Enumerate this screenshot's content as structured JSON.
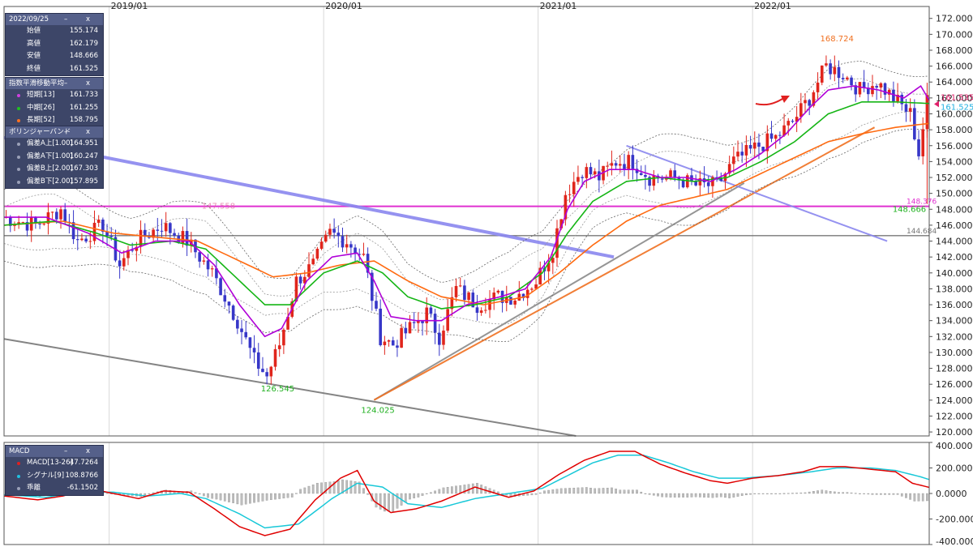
{
  "colors": {
    "up": "#e0251c",
    "down": "#3737c8",
    "short_ema": "#b000d8",
    "mid_ema": "#15b515",
    "long_ema": "#ff6a10",
    "macd": "#e00000",
    "signal": "#18c8d8",
    "magenta_line": "#e030d0",
    "trend_blue": "#8a86ee",
    "gray_line": "#808080"
  },
  "x_axis_labels": [
    "2019/01",
    "2020/01",
    "2021/01",
    "2022/01"
  ],
  "price_panel": {
    "header": "2022/09/25",
    "rows": [
      {
        "label": "始値",
        "value": "155.174"
      },
      {
        "label": "高値",
        "value": "162.179"
      },
      {
        "label": "安値",
        "value": "148.666"
      },
      {
        "label": "終値",
        "value": "161.525"
      }
    ]
  },
  "ema_panel": {
    "header": "指数平滑移動平均",
    "rows": [
      {
        "label": "短期[13]",
        "value": "161.733",
        "color": "#d040e0"
      },
      {
        "label": "中期[26]",
        "value": "161.255",
        "color": "#20c020"
      },
      {
        "label": "長期[52]",
        "value": "158.795",
        "color": "#ff7020"
      }
    ]
  },
  "bb_panel": {
    "header": "ボリンジャーバンド",
    "rows": [
      {
        "label": "偏差A上[1.00]",
        "value": "164.951",
        "color": "#9aa0b8"
      },
      {
        "label": "偏差A下[1.00]",
        "value": "160.247",
        "color": "#9aa0b8"
      },
      {
        "label": "偏差B上[2.00]",
        "value": "167.303",
        "color": "#9aa0b8"
      },
      {
        "label": "偏差B下[2.00]",
        "value": "157.895",
        "color": "#9aa0b8"
      }
    ]
  },
  "macd_panel": {
    "header": "MACD",
    "rows": [
      {
        "label": "MACD[13-26]",
        "value": "47.7264",
        "color": "#e02020"
      },
      {
        "label": "シグナル[9]",
        "value": "108.8766",
        "color": "#20c0e0"
      },
      {
        "label": "乖離",
        "value": "-61.1502",
        "color": "#9aa0b8"
      }
    ]
  },
  "panel_controls": "– x",
  "annotations": {
    "high": "168.724",
    "low1": "126.545",
    "low2": "124.025",
    "low3": "148.666",
    "faded": "147.558",
    "tag1": "161.535",
    "tag2": "161.525",
    "hline1": "148.376",
    "hline2": "144.684"
  },
  "chart_data": [
    {
      "type": "candlestick",
      "title": "",
      "ylim": [
        119.5,
        173.5
      ],
      "y_ticks": [
        "120.000",
        "122.000",
        "124.000",
        "126.000",
        "128.000",
        "130.000",
        "132.000",
        "134.000",
        "136.000",
        "138.000",
        "140.000",
        "142.000",
        "144.000",
        "146.000",
        "148.000",
        "150.000",
        "152.000",
        "154.000",
        "156.000",
        "158.000",
        "160.000",
        "162.000",
        "164.000",
        "166.000",
        "168.000",
        "170.000",
        "172.000"
      ],
      "x_labels": [
        "2019/01",
        "2020/01",
        "2021/01",
        "2022/01"
      ],
      "x_label_week_index": [
        25,
        76,
        127,
        178
      ],
      "week_count": 220,
      "path_anchors": [
        [
          0,
          147
        ],
        [
          8,
          146
        ],
        [
          14,
          148
        ],
        [
          18,
          144
        ],
        [
          24,
          146
        ],
        [
          28,
          141
        ],
        [
          32,
          144
        ],
        [
          38,
          146
        ],
        [
          44,
          144
        ],
        [
          50,
          140
        ],
        [
          56,
          134
        ],
        [
          60,
          129
        ],
        [
          63,
          127
        ],
        [
          66,
          131
        ],
        [
          70,
          139
        ],
        [
          74,
          141
        ],
        [
          78,
          145
        ],
        [
          82,
          144
        ],
        [
          86,
          142
        ],
        [
          88,
          137
        ],
        [
          90,
          132
        ],
        [
          93,
          131
        ],
        [
          97,
          133
        ],
        [
          101,
          135
        ],
        [
          104,
          132
        ],
        [
          108,
          138
        ],
        [
          113,
          136
        ],
        [
          118,
          137
        ],
        [
          122,
          137
        ],
        [
          127,
          139
        ],
        [
          131,
          143
        ],
        [
          134,
          150
        ],
        [
          138,
          153
        ],
        [
          142,
          152
        ],
        [
          146,
          154
        ],
        [
          150,
          154
        ],
        [
          154,
          152
        ],
        [
          160,
          152
        ],
        [
          165,
          151
        ],
        [
          170,
          151
        ],
        [
          174,
          154
        ],
        [
          180,
          156
        ],
        [
          184,
          157
        ],
        [
          188,
          159
        ],
        [
          192,
          162
        ],
        [
          196,
          166
        ],
        [
          200,
          165
        ],
        [
          204,
          163
        ],
        [
          208,
          164
        ],
        [
          212,
          162
        ],
        [
          216,
          160
        ],
        [
          218,
          155
        ],
        [
          220,
          161.5
        ]
      ],
      "short_ema_anchors": [
        [
          0,
          147
        ],
        [
          10,
          147
        ],
        [
          20,
          145
        ],
        [
          28,
          142.5
        ],
        [
          36,
          144
        ],
        [
          44,
          144
        ],
        [
          50,
          141
        ],
        [
          56,
          136
        ],
        [
          62,
          132
        ],
        [
          66,
          133
        ],
        [
          72,
          139
        ],
        [
          78,
          142
        ],
        [
          84,
          142.5
        ],
        [
          88,
          139
        ],
        [
          92,
          134.5
        ],
        [
          98,
          134
        ],
        [
          104,
          134
        ],
        [
          110,
          136
        ],
        [
          118,
          137
        ],
        [
          124,
          138
        ],
        [
          130,
          142
        ],
        [
          134,
          148
        ],
        [
          138,
          151.5
        ],
        [
          144,
          153
        ],
        [
          150,
          153
        ],
        [
          156,
          152
        ],
        [
          162,
          152
        ],
        [
          168,
          151.5
        ],
        [
          174,
          153
        ],
        [
          180,
          155
        ],
        [
          186,
          157.5
        ],
        [
          192,
          161
        ],
        [
          196,
          163
        ],
        [
          202,
          163.5
        ],
        [
          208,
          163
        ],
        [
          214,
          162
        ],
        [
          218,
          163.5
        ],
        [
          220,
          161.7
        ]
      ],
      "mid_ema_anchors": [
        [
          0,
          146
        ],
        [
          12,
          146.5
        ],
        [
          22,
          145
        ],
        [
          30,
          143.5
        ],
        [
          40,
          144
        ],
        [
          48,
          143
        ],
        [
          56,
          139
        ],
        [
          62,
          136
        ],
        [
          68,
          136
        ],
        [
          76,
          140
        ],
        [
          84,
          141.5
        ],
        [
          90,
          140
        ],
        [
          96,
          137
        ],
        [
          104,
          135.5
        ],
        [
          112,
          136
        ],
        [
          120,
          137
        ],
        [
          128,
          140
        ],
        [
          134,
          145
        ],
        [
          140,
          149
        ],
        [
          148,
          151.5
        ],
        [
          156,
          152
        ],
        [
          164,
          151.5
        ],
        [
          172,
          152
        ],
        [
          180,
          154
        ],
        [
          188,
          156.5
        ],
        [
          196,
          160
        ],
        [
          204,
          161.5
        ],
        [
          212,
          161.5
        ],
        [
          220,
          161.3
        ]
      ],
      "long_ema_anchors": [
        [
          0,
          146
        ],
        [
          14,
          146.5
        ],
        [
          26,
          145
        ],
        [
          36,
          144.5
        ],
        [
          46,
          144
        ],
        [
          56,
          141.5
        ],
        [
          64,
          139.5
        ],
        [
          72,
          140
        ],
        [
          80,
          141
        ],
        [
          88,
          141.5
        ],
        [
          96,
          139
        ],
        [
          104,
          137
        ],
        [
          114,
          136
        ],
        [
          124,
          137
        ],
        [
          132,
          140
        ],
        [
          140,
          143.5
        ],
        [
          148,
          146.5
        ],
        [
          156,
          148.5
        ],
        [
          164,
          149.5
        ],
        [
          172,
          150.5
        ],
        [
          180,
          152.5
        ],
        [
          188,
          154.5
        ],
        [
          196,
          156.5
        ],
        [
          204,
          157.5
        ],
        [
          212,
          158.3
        ],
        [
          220,
          158.8
        ]
      ],
      "bollinger_width_b": 4.5,
      "bollinger_width_a": 2.3,
      "annotations": [
        {
          "text": "168.724",
          "x_index": 196,
          "y": 168.724
        },
        {
          "text": "126.545",
          "x_index": 63,
          "y": 126.545
        },
        {
          "text": "124.025",
          "x_index": 88,
          "y": 124.025
        },
        {
          "text": "148.666",
          "x_index": 219,
          "y": 148.666
        },
        {
          "text": "161.535",
          "x_index": 220,
          "y": 161.535
        },
        {
          "text": "161.525",
          "x_index": 220,
          "y": 161.525
        }
      ],
      "horizontal_lines": [
        {
          "y": 148.376,
          "label": "148.376"
        },
        {
          "y": 144.684,
          "label": "144.684"
        }
      ],
      "trend_lines": [
        {
          "from": [
            88,
            124.025
          ],
          "to": [
            176,
            151.3
          ]
        },
        {
          "from": [
            88,
            124.025
          ],
          "to": [
            207,
            158.3
          ]
        },
        {
          "from": [
            0,
            157
          ],
          "to": [
            145,
            142
          ]
        },
        {
          "from": [
            148,
            156
          ],
          "to": [
            210,
            144
          ]
        },
        {
          "from": [
            0,
            131.7
          ],
          "to": [
            136,
            119.5
          ]
        }
      ]
    },
    {
      "type": "line",
      "title": "",
      "ylim": [
        -400,
        400
      ],
      "y_ticks": [
        "400.0000",
        "200.0000",
        "0.0000",
        "-200.0000",
        "-400.0000"
      ],
      "series": [
        {
          "name": "MACD[13-26]",
          "anchors": [
            [
              0,
              -20
            ],
            [
              8,
              -50
            ],
            [
              14,
              -20
            ],
            [
              20,
              40
            ],
            [
              26,
              0
            ],
            [
              32,
              -40
            ],
            [
              38,
              20
            ],
            [
              44,
              10
            ],
            [
              50,
              -120
            ],
            [
              56,
              -260
            ],
            [
              62,
              -330
            ],
            [
              68,
              -280
            ],
            [
              74,
              -50
            ],
            [
              80,
              120
            ],
            [
              84,
              180
            ],
            [
              88,
              -60
            ],
            [
              92,
              -150
            ],
            [
              98,
              -120
            ],
            [
              104,
              -60
            ],
            [
              112,
              50
            ],
            [
              120,
              -30
            ],
            [
              126,
              20
            ],
            [
              132,
              150
            ],
            [
              138,
              260
            ],
            [
              144,
              330
            ],
            [
              150,
              330
            ],
            [
              156,
              230
            ],
            [
              162,
              160
            ],
            [
              168,
              100
            ],
            [
              172,
              80
            ],
            [
              178,
              120
            ],
            [
              184,
              140
            ],
            [
              190,
              170
            ],
            [
              194,
              210
            ],
            [
              200,
              210
            ],
            [
              206,
              190
            ],
            [
              212,
              170
            ],
            [
              216,
              80
            ],
            [
              220,
              47.7
            ]
          ]
        },
        {
          "name": "シグナル[9]",
          "anchors": [
            [
              0,
              -10
            ],
            [
              10,
              -30
            ],
            [
              18,
              10
            ],
            [
              26,
              10
            ],
            [
              34,
              -20
            ],
            [
              42,
              0
            ],
            [
              48,
              -40
            ],
            [
              56,
              -160
            ],
            [
              62,
              -270
            ],
            [
              70,
              -240
            ],
            [
              78,
              -40
            ],
            [
              84,
              80
            ],
            [
              90,
              50
            ],
            [
              96,
              -80
            ],
            [
              104,
              -110
            ],
            [
              112,
              -40
            ],
            [
              120,
              0
            ],
            [
              128,
              40
            ],
            [
              134,
              140
            ],
            [
              140,
              240
            ],
            [
              146,
              300
            ],
            [
              152,
              300
            ],
            [
              158,
              240
            ],
            [
              164,
              170
            ],
            [
              170,
              120
            ],
            [
              176,
              120
            ],
            [
              184,
              140
            ],
            [
              192,
              170
            ],
            [
              198,
              200
            ],
            [
              206,
              200
            ],
            [
              212,
              180
            ],
            [
              218,
              130
            ],
            [
              220,
              108.9
            ]
          ]
        },
        {
          "name": "乖離",
          "value": -61.1502
        }
      ]
    }
  ]
}
